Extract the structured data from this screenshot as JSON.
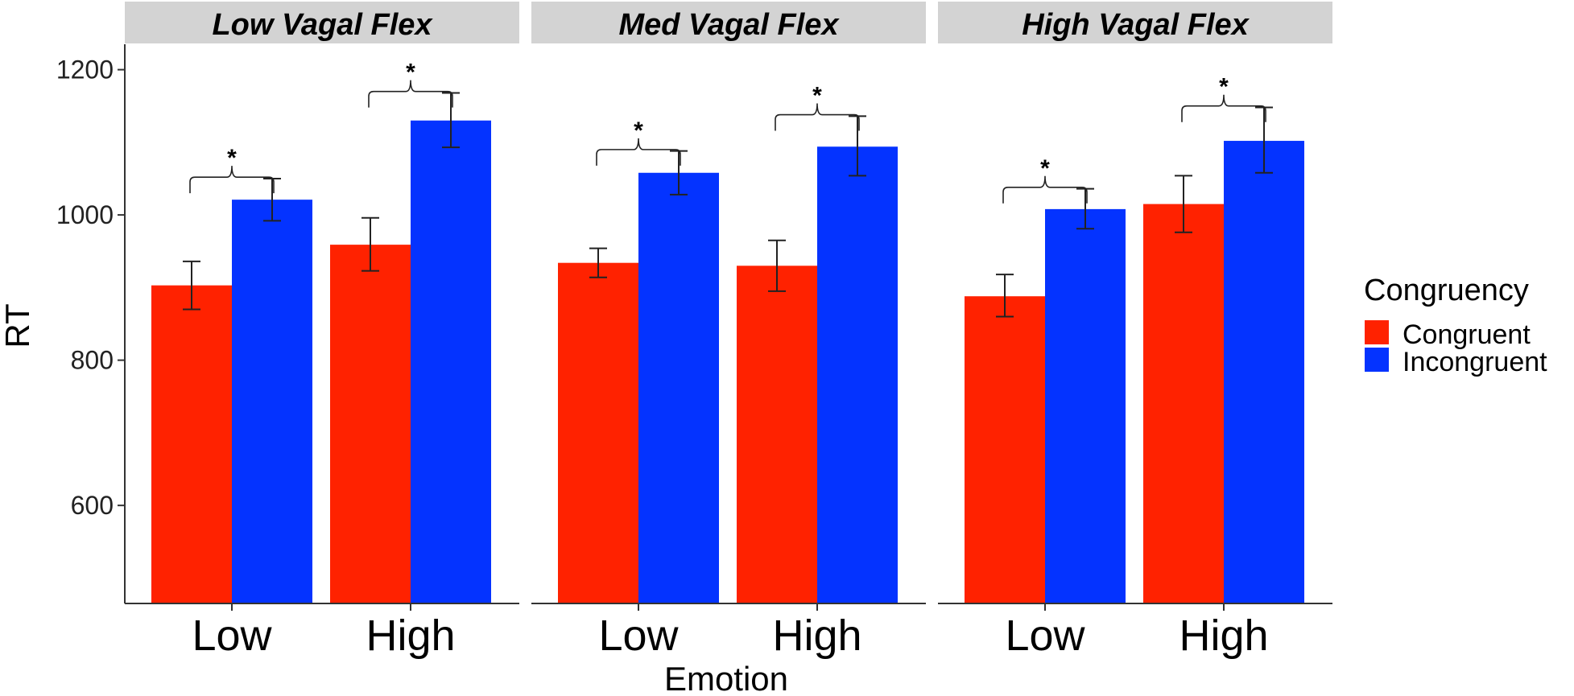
{
  "chart_data": {
    "type": "bar",
    "ylabel": "RT",
    "xlabel": "Emotion",
    "ylim": [
      465,
      1235
    ],
    "yticks": [
      600,
      800,
      1000,
      1200
    ],
    "categories": [
      "Low",
      "High"
    ],
    "legend": {
      "title": "Congruency",
      "position": "right",
      "entries": [
        {
          "name": "Congruent",
          "color": "#FF2200"
        },
        {
          "name": "Incongruent",
          "color": "#0433FF"
        }
      ]
    },
    "panels": [
      {
        "title": "Low Vagal Flex",
        "series": [
          {
            "name": "Congruent",
            "values": [
              903,
              959
            ],
            "err_low": [
              870,
              923
            ],
            "err_high": [
              936,
              996
            ]
          },
          {
            "name": "Incongruent",
            "values": [
              1021,
              1130
            ],
            "err_low": [
              992,
              1093
            ],
            "err_high": [
              1050,
              1168
            ]
          }
        ],
        "significance": [
          {
            "category": "Low",
            "label": "*",
            "y": 1052
          },
          {
            "category": "High",
            "label": "*",
            "y": 1170
          }
        ]
      },
      {
        "title": "Med Vagal Flex",
        "series": [
          {
            "name": "Congruent",
            "values": [
              934,
              930
            ],
            "err_low": [
              914,
              895
            ],
            "err_high": [
              954,
              965
            ]
          },
          {
            "name": "Incongruent",
            "values": [
              1058,
              1094
            ],
            "err_low": [
              1028,
              1054
            ],
            "err_high": [
              1088,
              1136
            ]
          }
        ],
        "significance": [
          {
            "category": "Low",
            "label": "*",
            "y": 1090
          },
          {
            "category": "High",
            "label": "*",
            "y": 1138
          }
        ]
      },
      {
        "title": "High Vagal Flex",
        "series": [
          {
            "name": "Congruent",
            "values": [
              888,
              1015
            ],
            "err_low": [
              860,
              976
            ],
            "err_high": [
              918,
              1054
            ]
          },
          {
            "name": "Incongruent",
            "values": [
              1008,
              1102
            ],
            "err_low": [
              981,
              1058
            ],
            "err_high": [
              1036,
              1148
            ]
          }
        ],
        "significance": [
          {
            "category": "Low",
            "label": "*",
            "y": 1038
          },
          {
            "category": "High",
            "label": "*",
            "y": 1150
          }
        ]
      }
    ]
  }
}
